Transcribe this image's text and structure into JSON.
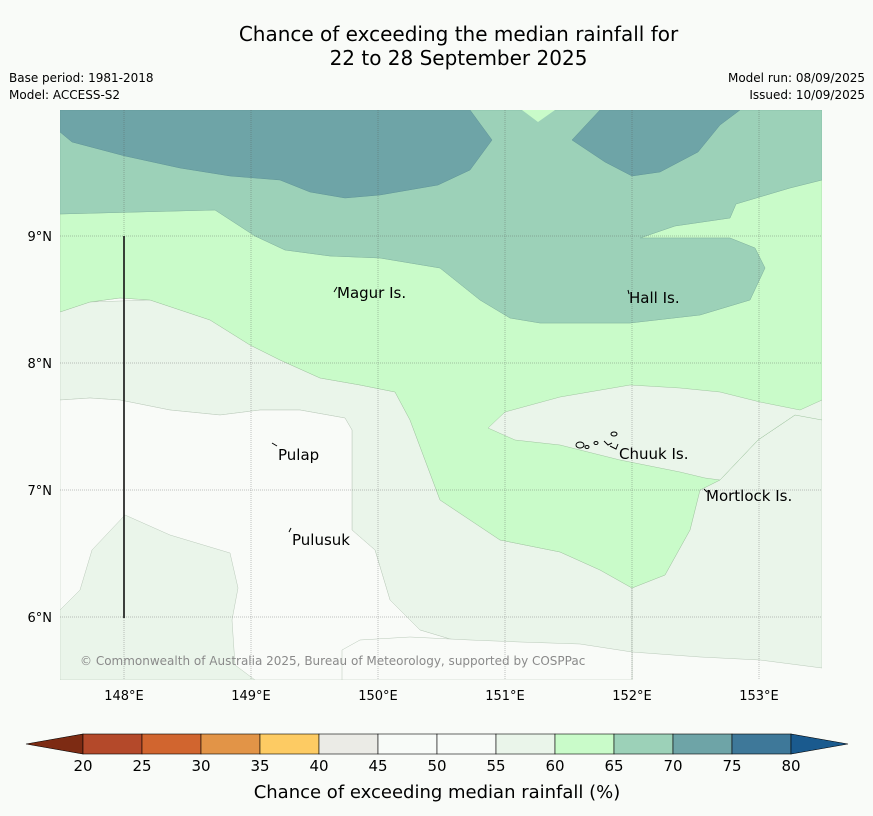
{
  "title": {
    "line1": "Chance of exceeding the median rainfall for",
    "line2": "22 to 28 September 2025"
  },
  "meta": {
    "base_period": "Base period: 1981-2018",
    "model": "Model: ACCESS-S2",
    "model_run": "Model run: 08/09/2025",
    "issued": "Issued: 10/09/2025"
  },
  "map": {
    "lon_labels": [
      "148°E",
      "149°E",
      "150°E",
      "151°E",
      "152°E",
      "153°E"
    ],
    "lat_labels": [
      "9°N",
      "8°N",
      "7°N",
      "6°N"
    ],
    "places": [
      {
        "name": "Magur Is."
      },
      {
        "name": "Hall Is."
      },
      {
        "name": "Pulap"
      },
      {
        "name": "Chuuk Is."
      },
      {
        "name": "Mortlock Is."
      },
      {
        "name": "Pulusuk"
      }
    ],
    "copyright": "© Commonwealth of Australia 2025, Bureau of Meteorology, supported by COSPPac",
    "colors": {
      "c55_60": "#f9fbf8",
      "c60_65": "#eaf5ea",
      "c65_70": "#c9fbc9",
      "c70_75": "#9cd1b8",
      "c75_80": "#6ea4a7"
    }
  },
  "colorbar": {
    "labels": [
      "20",
      "25",
      "30",
      "35",
      "40",
      "45",
      "50",
      "55",
      "60",
      "65",
      "70",
      "75",
      "80"
    ],
    "colors": [
      "#7d2b13",
      "#b4492a",
      "#d1652f",
      "#e29447",
      "#fdcb63",
      "#ebebe6",
      "#f8fbf8",
      "#f8fbf8",
      "#eaf5ea",
      "#c9fbc9",
      "#9cd1b8",
      "#6ea4a7",
      "#3e7899",
      "#1a5a8e"
    ],
    "title": "Chance of exceeding median rainfall (%)"
  }
}
